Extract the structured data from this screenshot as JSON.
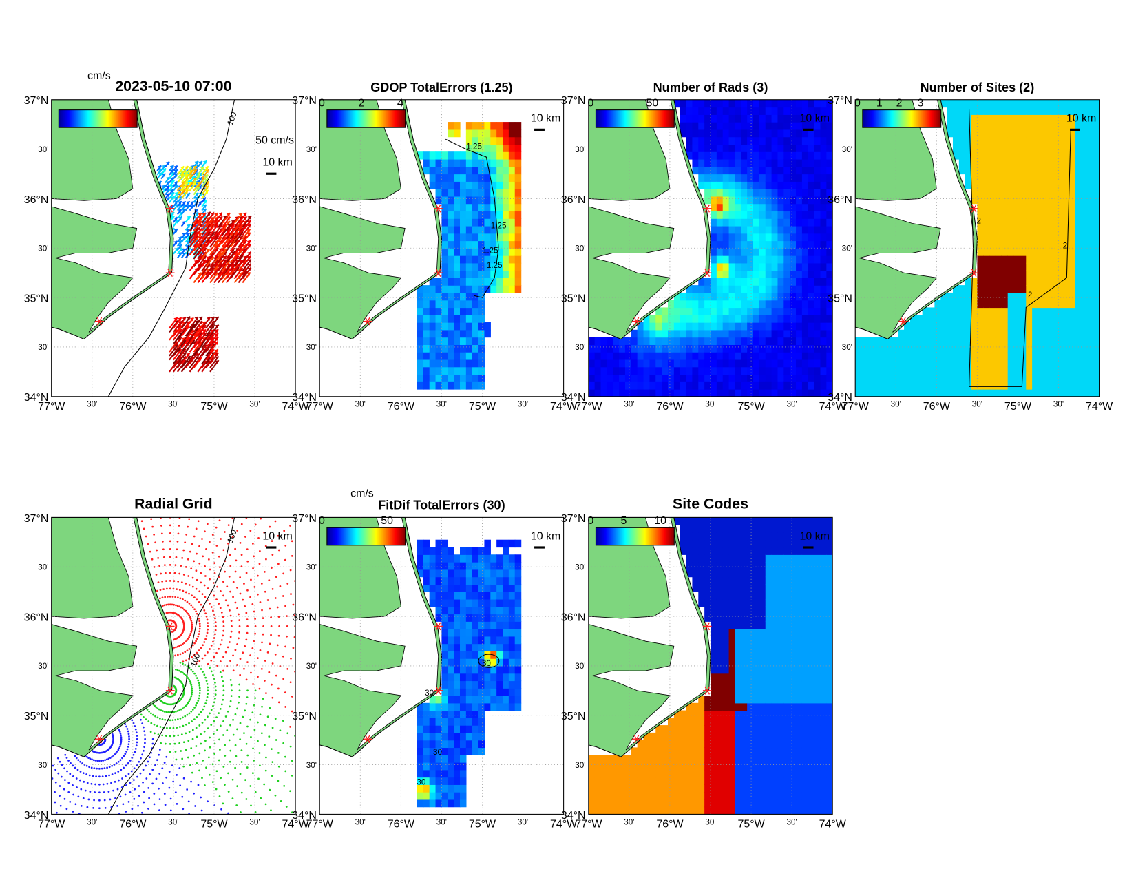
{
  "panels": [
    {
      "title": "2023-05-10 07:00",
      "unit": "cm/s",
      "colorbar_ticks": [],
      "vector_scale": "50 cm/s",
      "contour_labels": [
        "100"
      ]
    },
    {
      "title": "GDOP TotalErrors (1.25)",
      "colorbar_ticks": [
        0,
        2,
        4
      ],
      "contour_labels": [
        "1.25",
        "1.25",
        "1.25",
        "1.25"
      ]
    },
    {
      "title": "Number of Rads (3)",
      "colorbar_ticks": [
        0,
        50
      ],
      "contour_labels": []
    },
    {
      "title": "Number of Sites (2)",
      "colorbar_ticks": [
        0,
        1,
        2,
        3
      ],
      "contour_labels": [
        "2",
        "2",
        "2"
      ]
    },
    {
      "title": "Radial Grid",
      "colorbar_ticks": [],
      "contour_labels": [
        "100",
        "100"
      ]
    },
    {
      "title": "FitDif TotalErrors (30)",
      "unit": "cm/s",
      "colorbar_ticks": [
        0,
        50
      ],
      "contour_labels": [
        "30",
        "30",
        "30",
        "30"
      ]
    },
    {
      "title": "Site Codes",
      "colorbar_ticks": [
        0,
        5,
        10
      ],
      "contour_labels": []
    }
  ],
  "lat_ticks": [
    "37°N",
    "30'",
    "36°N",
    "30'",
    "35°N",
    "30'",
    "34°N"
  ],
  "lon_ticks": [
    "77°W",
    "30'",
    "76°W",
    "30'",
    "75°W",
    "30'",
    "74°W"
  ],
  "scale_label": "10 km"
}
